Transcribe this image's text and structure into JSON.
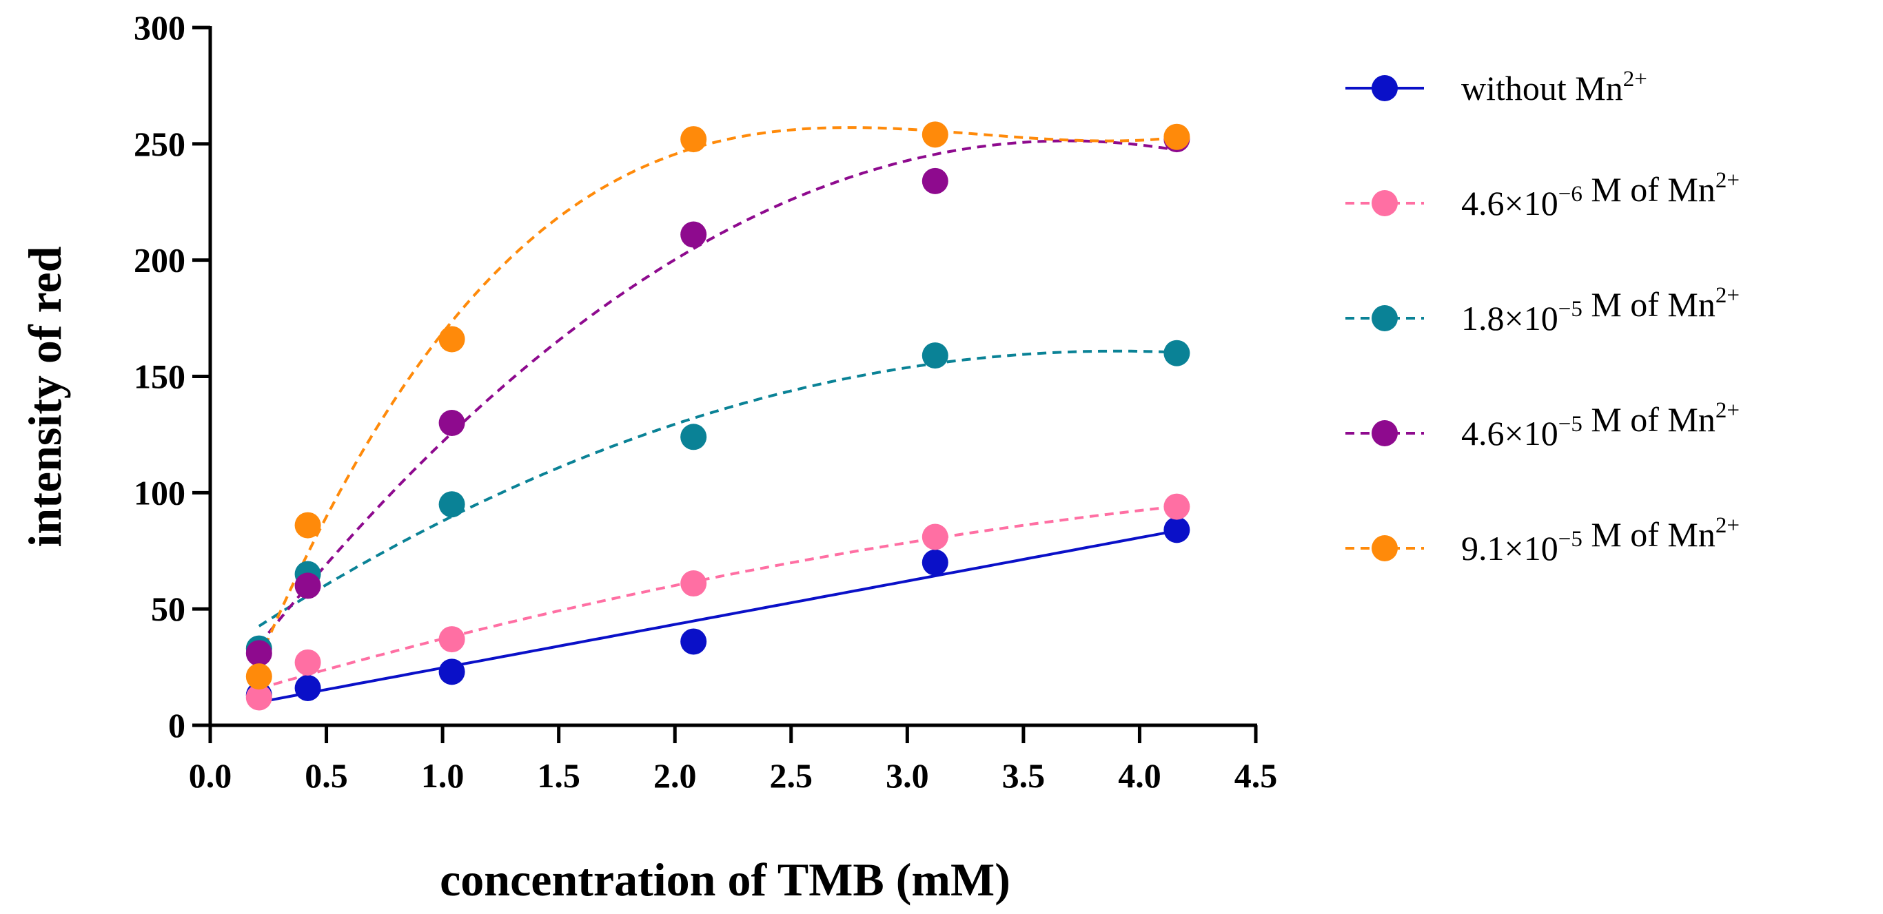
{
  "chart_data": {
    "type": "scatter",
    "xlabel": "concentration of TMB (mM)",
    "ylabel": "intensity of red",
    "xlim": [
      0,
      4.5
    ],
    "ylim": [
      0,
      300
    ],
    "x_ticks": [
      "0.0",
      "0.5",
      "1.0",
      "1.5",
      "2.0",
      "2.5",
      "3.0",
      "3.5",
      "4.0",
      "4.5"
    ],
    "y_ticks": [
      "0",
      "50",
      "100",
      "150",
      "200",
      "250",
      "300"
    ],
    "legend_position": "right",
    "grid": false,
    "x": [
      0.21,
      0.42,
      1.04,
      2.08,
      3.12,
      4.16
    ],
    "series": [
      {
        "label": {
          "prefix": "without Mn",
          "sup": "2+"
        },
        "color": "#0a10c8",
        "line_style": "solid",
        "fit": "linear",
        "values": [
          13,
          16,
          23,
          36,
          70,
          84
        ]
      },
      {
        "label": {
          "prefix": "4.6×10",
          "exp": "−6",
          "mid": " M of Mn",
          "sup": "2+"
        },
        "color": "#ff6fa3",
        "line_style": "dashed",
        "fit": "quadratic",
        "values": [
          12,
          27,
          37,
          61,
          81,
          94
        ]
      },
      {
        "label": {
          "prefix": "1.8×10",
          "exp": "−5",
          "mid": " M of Mn",
          "sup": "2+"
        },
        "color": "#0a8296",
        "line_style": "dashed",
        "fit": "quadratic",
        "values": [
          33,
          65,
          95,
          124,
          159,
          160
        ]
      },
      {
        "label": {
          "prefix": "4.6×10",
          "exp": "−5",
          "mid": " M of Mn",
          "sup": "2+"
        },
        "color": "#8e0a8e",
        "line_style": "dashed",
        "fit": "quadratic",
        "values": [
          31,
          60,
          130,
          211,
          234,
          252
        ]
      },
      {
        "label": {
          "prefix": "9.1×10",
          "exp": "−5",
          "mid": " M of Mn",
          "sup": "2+"
        },
        "color": "#ff8a0a",
        "line_style": "dashed",
        "fit": "cubic",
        "values": [
          21,
          86,
          166,
          252,
          254,
          253
        ]
      }
    ]
  }
}
